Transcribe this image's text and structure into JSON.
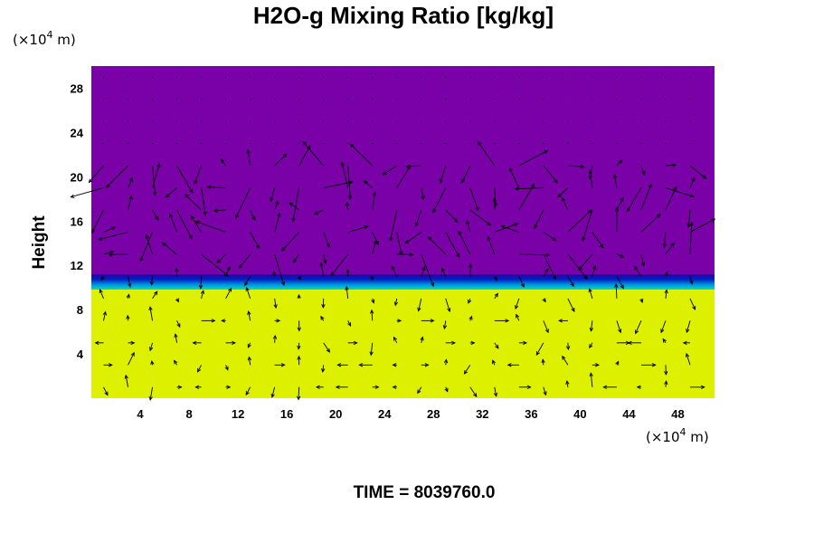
{
  "chart_data": {
    "type": "heatmap",
    "title": "H2O-g Mixing Ratio [kg/kg]",
    "ylabel": "Height",
    "x_unit": {
      "prefix": "(×10",
      "exp": "4",
      "suffix": " m)"
    },
    "y_unit": {
      "prefix": "(×10",
      "exp": "4",
      "suffix": " m)"
    },
    "xlim": [
      0,
      51
    ],
    "ylim": [
      0,
      30
    ],
    "x_ticks": [
      4,
      8,
      12,
      16,
      20,
      24,
      28,
      32,
      36,
      40,
      44,
      48
    ],
    "y_ticks": [
      4,
      8,
      12,
      16,
      20,
      24,
      28
    ],
    "layers": [
      {
        "name": "moist lower layer",
        "y_range": [
          0,
          9.8
        ],
        "color": "#dcf000"
      },
      {
        "name": "transition",
        "y_range": [
          9.8,
          11.2
        ],
        "colors": [
          "#00e0c0",
          "#0090e0",
          "#0020c0",
          "#2a00a0"
        ]
      },
      {
        "name": "dry upper layer",
        "y_range": [
          11.2,
          30
        ],
        "color": "#7a00a8"
      }
    ],
    "vector_field": {
      "present": true,
      "color": "#000000",
      "active_y_range": [
        0,
        21
      ]
    },
    "time_label": "TIME = 8039760.0"
  }
}
